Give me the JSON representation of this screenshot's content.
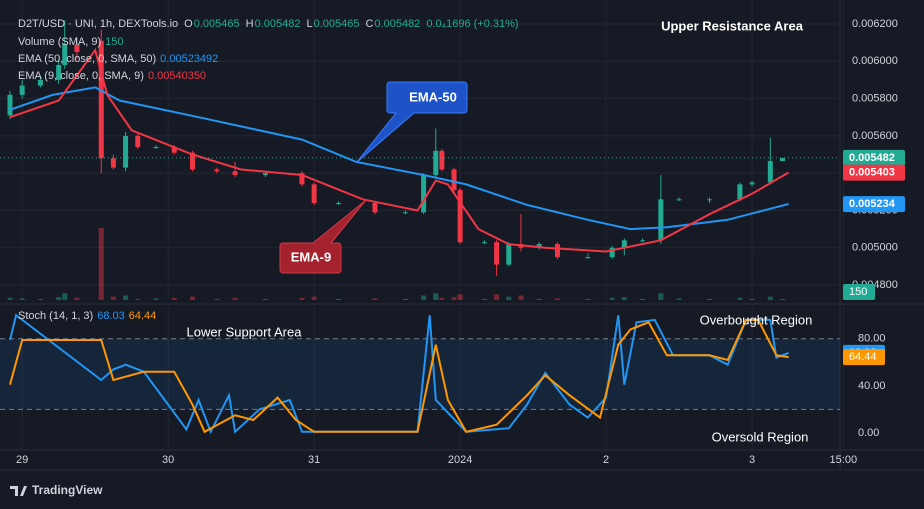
{
  "chart_data": [
    {
      "type": "candlestick",
      "title": "D2T/USD · UNI, 1h, DEXTools.io",
      "ohlc": [
        {
          "label": "O",
          "value": 0.005465
        },
        {
          "label": "H",
          "value": 0.005482
        },
        {
          "label": "L",
          "value": 0.005465
        },
        {
          "label": "C",
          "value": 0.005482
        }
      ],
      "change": "0.0₄1696 (+0.31%)",
      "x": [
        0,
        2,
        5,
        8,
        9,
        11,
        15,
        17,
        19,
        21,
        24,
        27,
        30,
        34,
        37,
        42,
        48,
        50,
        54,
        60,
        65,
        68,
        70,
        71,
        73,
        74,
        78,
        80,
        82,
        84,
        87,
        90,
        95,
        99,
        101,
        104,
        107,
        110,
        115,
        120,
        122,
        125,
        127
      ],
      "open": [
        0.00571,
        0.00582,
        0.00587,
        0.0059,
        0.00598,
        0.00609,
        0.00611,
        0.00548,
        0.00543,
        0.0056,
        0.00554,
        0.00554,
        0.00551,
        0.00542,
        0.00541,
        0.00539,
        0.0054,
        0.00534,
        0.00524,
        0.00524,
        0.00519,
        0.00519,
        0.00539,
        0.00552,
        0.00542,
        0.00531,
        0.00503,
        0.00503,
        0.00491,
        0.00502,
        0.005,
        0.00502,
        0.00495,
        0.00495,
        0.005,
        0.00504,
        0.00504,
        0.00526,
        0.00526,
        0.00526,
        0.00534,
        0.00535,
        0.005465
      ],
      "high": [
        0.00584,
        0.0059,
        0.00592,
        0.00601,
        0.00622,
        0.00613,
        0.00617,
        0.0055,
        0.00562,
        0.00561,
        0.00555,
        0.00555,
        0.00552,
        0.00543,
        0.00546,
        0.00541,
        0.00541,
        0.00535,
        0.00525,
        0.00525,
        0.0052,
        0.0054,
        0.00564,
        0.00553,
        0.00543,
        0.00532,
        0.00504,
        0.00504,
        0.00503,
        0.00518,
        0.00503,
        0.00503,
        0.00497,
        0.00501,
        0.00505,
        0.00505,
        0.00539,
        0.00527,
        0.00527,
        0.00535,
        0.00536,
        0.00559,
        0.005482
      ],
      "low": [
        0.00569,
        0.0058,
        0.00586,
        0.00588,
        0.00596,
        0.00601,
        0.0054,
        0.00542,
        0.00541,
        0.00553,
        0.00553,
        0.0055,
        0.00541,
        0.0054,
        0.00538,
        0.00538,
        0.00533,
        0.00523,
        0.00523,
        0.00518,
        0.00518,
        0.00518,
        0.00537,
        0.00541,
        0.0053,
        0.00502,
        0.00502,
        0.00485,
        0.0049,
        0.00498,
        0.00499,
        0.00494,
        0.00494,
        0.00494,
        0.00496,
        0.00503,
        0.00502,
        0.00525,
        0.00524,
        0.00525,
        0.00533,
        0.00534,
        0.005465
      ],
      "close": [
        0.00582,
        0.00587,
        0.0059,
        0.00598,
        0.00609,
        0.00605,
        0.00548,
        0.00543,
        0.0056,
        0.00554,
        0.00554,
        0.00551,
        0.00542,
        0.00541,
        0.00539,
        0.0054,
        0.00534,
        0.00524,
        0.00524,
        0.00519,
        0.00519,
        0.00539,
        0.00552,
        0.00542,
        0.00531,
        0.00503,
        0.00503,
        0.00491,
        0.00502,
        0.005,
        0.00502,
        0.00495,
        0.00495,
        0.005,
        0.00504,
        0.00504,
        0.00526,
        0.00526,
        0.00526,
        0.00534,
        0.00535,
        0.005465,
        0.005482
      ],
      "volume": [
        20,
        15,
        10,
        25,
        60,
        20,
        640,
        30,
        40,
        10,
        15,
        20,
        30,
        10,
        20,
        10,
        20,
        30,
        10,
        15,
        10,
        40,
        60,
        20,
        25,
        50,
        10,
        50,
        30,
        40,
        10,
        15,
        10,
        20,
        25,
        10,
        60,
        15,
        10,
        20,
        10,
        30,
        10
      ],
      "volume_name": "Volume (SMA, 9)",
      "volume_sma": 150,
      "vlim": [
        0,
        800
      ],
      "up_color": "#22ab94",
      "down_color": "#f23645",
      "last_price": 0.005482,
      "series": [
        {
          "name": "EMA (50, close, 0, SMA, 50)",
          "color": "#2196f3",
          "x": [
            0,
            7,
            14,
            18,
            31,
            48,
            57,
            68,
            75,
            85,
            95,
            102,
            108,
            118,
            128
          ],
          "values": [
            0.00574,
            0.00582,
            0.00586,
            0.00579,
            0.0057,
            0.00558,
            0.00546,
            0.00539,
            0.00534,
            0.00523,
            0.00515,
            0.0051,
            0.00511,
            0.00515,
            0.005235
          ],
          "legend_value": 0.00523492,
          "price_label": 0.005234
        },
        {
          "name": "EMA (9, close, 0, SMA, 9)",
          "color": "#f23645",
          "x": [
            0,
            8,
            14,
            16,
            20,
            30,
            38,
            48,
            58,
            67,
            70,
            72,
            77,
            82,
            88,
            98,
            107,
            115,
            122,
            128
          ],
          "values": [
            0.0057,
            0.00579,
            0.00606,
            0.00582,
            0.00563,
            0.0055,
            0.00542,
            0.00539,
            0.00526,
            0.0052,
            0.00536,
            0.00534,
            0.0051,
            0.00502,
            0.005,
            0.00498,
            0.00504,
            0.00518,
            0.00529,
            0.0054035
          ],
          "legend_value": {
            "value": 0.0054035,
            "label": "0.00540350"
          },
          "price_label": 0.005403
        }
      ],
      "xlim": [
        0,
        138
      ],
      "ylim": [
        0.00472,
        0.006275
      ],
      "yticks": [
        {
          "value": 0.0048,
          "label": "0.004800"
        },
        {
          "value": 0.005,
          "label": "0.005000"
        },
        {
          "value": 0.0052,
          "label": "0.005200"
        },
        {
          "value": 0.0054,
          "label": "0.005400"
        },
        {
          "value": 0.0056,
          "label": "0.005600"
        },
        {
          "value": 0.0058,
          "label": "0.005800"
        },
        {
          "value": 0.006,
          "label": "0.006000"
        },
        {
          "value": 0.0062,
          "label": "0.006200"
        }
      ],
      "grid": true,
      "annotations": [
        "Upper Resistance Area",
        "EMA-50",
        "EMA-9"
      ]
    },
    {
      "type": "line",
      "title": "Stoch (14, 1, 3)",
      "series": [
        {
          "color": "#2196f3",
          "x": [
            0,
            1,
            15,
            17,
            19,
            22,
            29,
            31,
            33,
            36,
            37,
            41,
            46,
            48,
            67,
            69,
            70,
            75,
            82,
            85,
            88,
            92,
            95,
            98,
            100,
            101,
            103,
            106,
            109,
            115,
            118,
            121,
            125,
            126,
            128
          ],
          "values": [
            79,
            100,
            45,
            54,
            58,
            52,
            3,
            28,
            1,
            32,
            1,
            20,
            28,
            1,
            1,
            100,
            28,
            1,
            4,
            24,
            51,
            24,
            13,
            30,
            100,
            41,
            94,
            96,
            66,
            66,
            58,
            96,
            96,
            64,
            68.03
          ]
        },
        {
          "color": "#ff9800",
          "x": [
            0,
            2,
            15,
            17,
            22,
            27,
            30,
            32,
            37,
            40,
            44,
            47,
            50,
            67,
            70,
            72,
            75,
            80,
            85,
            88,
            92,
            97,
            100,
            102,
            105,
            108,
            115,
            118,
            121,
            123,
            126,
            128
          ],
          "values": [
            41,
            79,
            79,
            45,
            52,
            52,
            24,
            1,
            15,
            11,
            30,
            11,
            1,
            1,
            75,
            28,
            1,
            7,
            32,
            49,
            32,
            13,
            75,
            88,
            94,
            66,
            66,
            62,
            96,
            96,
            66,
            64.44
          ]
        }
      ],
      "xlim": [
        0,
        138
      ],
      "ylim": [
        -14.5,
        107
      ],
      "yticks": [
        {
          "value": 80,
          "label": "80.00"
        },
        {
          "value": 40,
          "label": "40.00"
        },
        {
          "value": 0,
          "label": "0.00"
        }
      ],
      "bands": [
        20,
        80
      ],
      "xticks": [
        {
          "value": 2,
          "label": "29"
        },
        {
          "value": 26,
          "label": "30"
        },
        {
          "value": 50,
          "label": "31"
        },
        {
          "value": 74,
          "label": "2024"
        },
        {
          "value": 98,
          "label": "2"
        },
        {
          "value": 122,
          "label": "3"
        },
        {
          "value": 137,
          "label": "15:00"
        }
      ],
      "grid": true,
      "annotations": [
        "Lower Support Area",
        "Overbought Region",
        "Oversold Region"
      ]
    }
  ],
  "footer": "TradingView"
}
